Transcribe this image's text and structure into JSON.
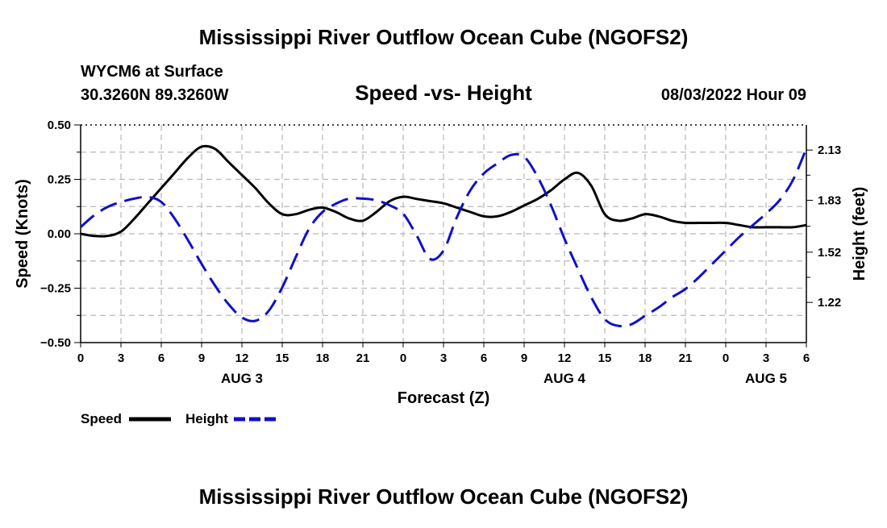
{
  "page": {
    "title": "Mississippi River Outflow Ocean Cube (NGOFS2)",
    "title_bottom": "Mississippi River Outflow Ocean Cube (NGOFS2)",
    "station": "WYCM6 at Surface",
    "coords": "30.3260N  89.3260W",
    "datetime": "08/03/2022 Hour 09"
  },
  "chart_data": {
    "type": "line",
    "title": "Speed -vs- Height",
    "xlabel": "Forecast (Z)",
    "ylabel": "Speed (Knots)",
    "y2label": "Height (feet)",
    "x_range": [
      0,
      54
    ],
    "ylim": [
      -0.5,
      0.5
    ],
    "y2lim": [
      0.98,
      2.28
    ],
    "grid": true,
    "x_tick_labels": [
      "0",
      "3",
      "6",
      "9",
      "12",
      "15",
      "18",
      "21",
      "0",
      "3",
      "6",
      "9",
      "12",
      "15",
      "18",
      "21",
      "0",
      "3",
      "6"
    ],
    "y_ticks": [
      -0.5,
      -0.25,
      0.0,
      0.25,
      0.5
    ],
    "y_tick_labels": [
      "−0.50",
      "−0.25",
      "0.00",
      "0.25",
      "0.50"
    ],
    "y2_ticks": [
      1.22,
      1.52,
      1.83,
      2.13
    ],
    "y2_tick_labels": [
      "1.22",
      "1.52",
      "1.83",
      "2.13"
    ],
    "date_labels": [
      {
        "label": "AUG 3",
        "hour": 12
      },
      {
        "label": "AUG 4",
        "hour": 36
      },
      {
        "label": "AUG 5",
        "hour": 51
      }
    ],
    "series": [
      {
        "name": "Speed",
        "color": "#000000",
        "dash": "solid",
        "axis": "left",
        "x": [
          0,
          1,
          2,
          3,
          4,
          5,
          6,
          7,
          8,
          9,
          10,
          11,
          12,
          13,
          14,
          15,
          16,
          17,
          18,
          19,
          20,
          21,
          22,
          23,
          24,
          25,
          26,
          27,
          28,
          29,
          30,
          31,
          32,
          33,
          34,
          35,
          36,
          37,
          38,
          39,
          40,
          41,
          42,
          43,
          44,
          45,
          46,
          47,
          48,
          49,
          50,
          51,
          52,
          53,
          54
        ],
        "values": [
          0.0,
          -0.01,
          -0.01,
          0.01,
          0.07,
          0.14,
          0.21,
          0.28,
          0.35,
          0.4,
          0.39,
          0.33,
          0.27,
          0.21,
          0.14,
          0.09,
          0.09,
          0.11,
          0.12,
          0.1,
          0.07,
          0.06,
          0.1,
          0.15,
          0.17,
          0.16,
          0.15,
          0.14,
          0.12,
          0.1,
          0.08,
          0.08,
          0.1,
          0.13,
          0.16,
          0.2,
          0.25,
          0.28,
          0.22,
          0.09,
          0.06,
          0.07,
          0.09,
          0.08,
          0.06,
          0.05,
          0.05,
          0.05,
          0.05,
          0.04,
          0.03,
          0.03,
          0.03,
          0.03,
          0.04
        ]
      },
      {
        "name": "Height",
        "color": "#1010c8",
        "dash": "dashed",
        "axis": "right",
        "x": [
          0,
          1,
          2,
          3,
          4,
          5,
          6,
          7,
          8,
          9,
          10,
          11,
          12,
          13,
          14,
          15,
          16,
          17,
          18,
          19,
          20,
          21,
          22,
          23,
          24,
          25,
          26,
          27,
          28,
          29,
          30,
          31,
          32,
          33,
          34,
          35,
          36,
          37,
          38,
          39,
          40,
          41,
          42,
          43,
          44,
          45,
          46,
          47,
          48,
          49,
          50,
          51,
          52,
          53,
          54
        ],
        "values": [
          1.67,
          1.74,
          1.79,
          1.82,
          1.84,
          1.85,
          1.82,
          1.72,
          1.59,
          1.45,
          1.32,
          1.21,
          1.13,
          1.11,
          1.17,
          1.31,
          1.49,
          1.66,
          1.76,
          1.81,
          1.84,
          1.84,
          1.83,
          1.8,
          1.75,
          1.62,
          1.48,
          1.53,
          1.73,
          1.89,
          1.99,
          2.05,
          2.1,
          2.09,
          1.97,
          1.8,
          1.6,
          1.42,
          1.25,
          1.12,
          1.08,
          1.09,
          1.14,
          1.19,
          1.25,
          1.3,
          1.37,
          1.45,
          1.53,
          1.61,
          1.68,
          1.75,
          1.83,
          1.95,
          2.14
        ]
      }
    ],
    "legend": [
      {
        "label": "Speed",
        "color": "#000000",
        "dash": "solid"
      },
      {
        "label": "Height",
        "color": "#1010c8",
        "dash": "dashed"
      }
    ]
  }
}
